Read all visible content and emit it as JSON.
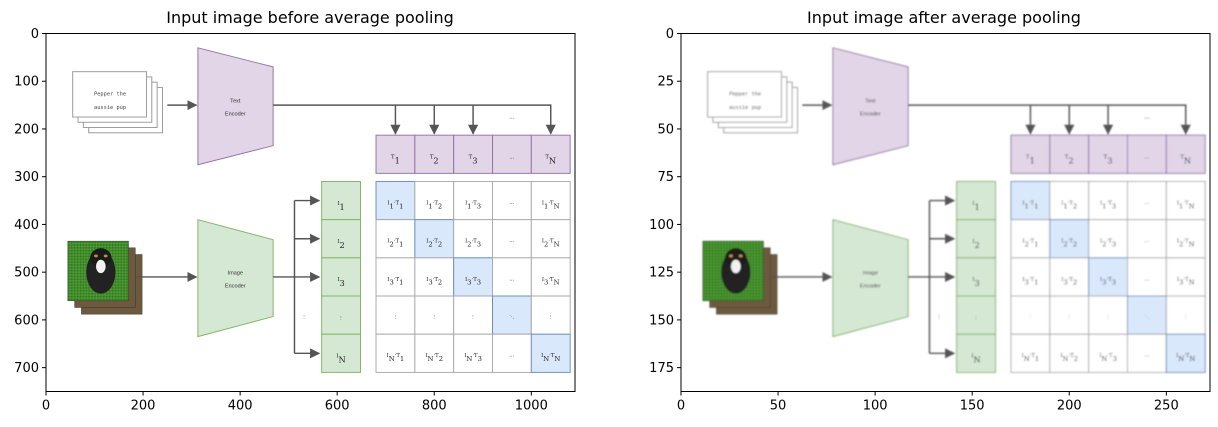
{
  "chart_data": [
    {
      "type": "image",
      "title": "Input image before average pooling",
      "xticks": [
        0,
        200,
        400,
        600,
        800,
        1000
      ],
      "yticks": [
        0,
        100,
        200,
        300,
        400,
        500,
        600,
        700
      ],
      "xlim": [
        0,
        1090
      ],
      "ylim": [
        750,
        0
      ],
      "blurred": false
    },
    {
      "type": "image",
      "title": "Input image after average pooling",
      "xticks": [
        0,
        50,
        100,
        150,
        200,
        250
      ],
      "yticks": [
        0,
        25,
        50,
        75,
        100,
        125,
        150,
        175
      ],
      "xlim": [
        0,
        272.5
      ],
      "ylim": [
        187.5,
        0
      ],
      "blurred": true
    }
  ],
  "image_content": {
    "caption_lines": [
      "Pepper the",
      "aussie pup"
    ],
    "text_encoder": [
      "Text",
      "Encoder"
    ],
    "image_encoder": [
      "Image",
      "Encoder"
    ],
    "ellipsis": "...",
    "vdots": "⋮",
    "ddots": "⋱",
    "t_labels": [
      [
        "T",
        "1"
      ],
      [
        "T",
        "2"
      ],
      [
        "T",
        "3"
      ],
      [
        "...",
        ""
      ],
      [
        "T",
        "N"
      ]
    ],
    "i_labels": [
      [
        "I",
        "1"
      ],
      [
        "I",
        "2"
      ],
      [
        "I",
        "3"
      ],
      [
        "⋮",
        ""
      ],
      [
        "I",
        "N"
      ]
    ],
    "matrix": [
      [
        [
          "I1·T1",
          "I",
          "1",
          "·T",
          "1"
        ],
        [
          "I1·T2",
          "I",
          "1",
          "·T",
          "2"
        ],
        [
          "I1·T3",
          "I",
          "1",
          "·T",
          "3"
        ],
        "...",
        [
          "I1·TN",
          "I",
          "1",
          "·T",
          "N"
        ]
      ],
      [
        [
          "I2·T1",
          "I",
          "2",
          "·T",
          "1"
        ],
        [
          "I2·T2",
          "I",
          "2",
          "·T",
          "2"
        ],
        [
          "I2·T3",
          "I",
          "2",
          "·T",
          "3"
        ],
        "...",
        [
          "I2·TN",
          "I",
          "2",
          "·T",
          "N"
        ]
      ],
      [
        [
          "I3·T1",
          "I",
          "3",
          "·T",
          "1"
        ],
        [
          "I3·T2",
          "I",
          "3",
          "·T",
          "2"
        ],
        [
          "I3·T3",
          "I",
          "3",
          "·T",
          "3"
        ],
        "...",
        [
          "I3·TN",
          "I",
          "3",
          "·T",
          "N"
        ]
      ],
      [
        "⋮",
        "⋮",
        "⋮",
        "⋱",
        "⋮"
      ],
      [
        [
          "IN·T1",
          "I",
          "N",
          "·T",
          "1"
        ],
        [
          "IN·T2",
          "I",
          "N",
          "·T",
          "2"
        ],
        [
          "IN·T3",
          "I",
          "N",
          "·T",
          "3"
        ],
        "...",
        [
          "IN·TN",
          "I",
          "N",
          "·T",
          "N"
        ]
      ]
    ],
    "colors": {
      "text_encoder_fill": "#e1d5e7",
      "text_encoder_stroke": "#9673a6",
      "image_encoder_fill": "#d5e8d4",
      "image_encoder_stroke": "#82b366",
      "diagonal_fill": "#dae8fc",
      "diagonal_stroke": "#6c8ebf",
      "arrow": "#555555",
      "grid": "#aaaaaa"
    }
  }
}
